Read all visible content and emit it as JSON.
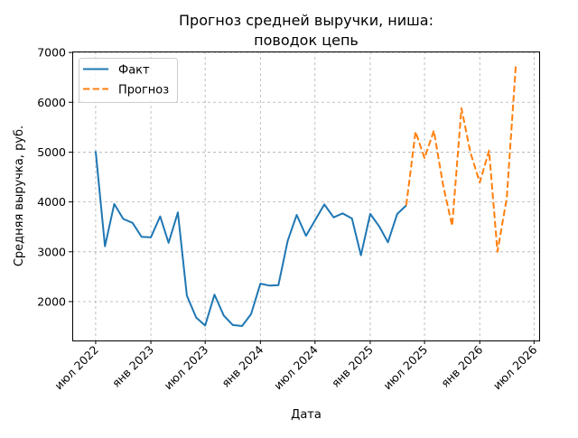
{
  "chart_data": {
    "type": "line",
    "title": [
      "Прогноз средней выручки, ниша:",
      "поводок цепь"
    ],
    "xlabel": "Дата",
    "ylabel": "Средняя выручка, руб.",
    "grid": true,
    "legend_position": "top-left",
    "xlim": [
      "2022-04-14",
      "2026-07-18"
    ],
    "ylim": [
      1220,
      7020
    ],
    "y_ticks": [
      2000,
      3000,
      4000,
      5000,
      6000,
      7000
    ],
    "x_ticks": [
      {
        "date": "2022-07-01",
        "label": "июл 2022"
      },
      {
        "date": "2023-01-01",
        "label": "янв 2023"
      },
      {
        "date": "2023-07-01",
        "label": "июл 2023"
      },
      {
        "date": "2024-01-01",
        "label": "янв 2024"
      },
      {
        "date": "2024-07-01",
        "label": "июл 2024"
      },
      {
        "date": "2025-01-01",
        "label": "янв 2025"
      },
      {
        "date": "2025-07-01",
        "label": "июл 2025"
      },
      {
        "date": "2026-01-01",
        "label": "янв 2026"
      },
      {
        "date": "2026-07-01",
        "label": "июл 2026"
      }
    ],
    "series": [
      {
        "name": "Факт",
        "color": "#1f77b4",
        "style": "solid",
        "points": [
          [
            "2022-07-01",
            5020
          ],
          [
            "2022-08-01",
            3110
          ],
          [
            "2022-09-01",
            3960
          ],
          [
            "2022-10-01",
            3660
          ],
          [
            "2022-11-01",
            3580
          ],
          [
            "2022-12-01",
            3300
          ],
          [
            "2023-01-01",
            3290
          ],
          [
            "2023-02-01",
            3710
          ],
          [
            "2023-03-01",
            3180
          ],
          [
            "2023-04-01",
            3790
          ],
          [
            "2023-05-01",
            2120
          ],
          [
            "2023-06-01",
            1680
          ],
          [
            "2023-07-01",
            1520
          ],
          [
            "2023-08-01",
            2140
          ],
          [
            "2023-09-01",
            1720
          ],
          [
            "2023-10-01",
            1530
          ],
          [
            "2023-11-01",
            1510
          ],
          [
            "2023-12-01",
            1750
          ],
          [
            "2024-01-01",
            2360
          ],
          [
            "2024-02-01",
            2320
          ],
          [
            "2024-03-01",
            2330
          ],
          [
            "2024-04-01",
            3220
          ],
          [
            "2024-05-01",
            3740
          ],
          [
            "2024-06-01",
            3320
          ],
          [
            "2024-07-01",
            3630
          ],
          [
            "2024-08-01",
            3950
          ],
          [
            "2024-09-01",
            3690
          ],
          [
            "2024-10-01",
            3770
          ],
          [
            "2024-11-01",
            3670
          ],
          [
            "2024-12-01",
            2930
          ],
          [
            "2025-01-01",
            3760
          ],
          [
            "2025-02-01",
            3500
          ],
          [
            "2025-03-01",
            3190
          ],
          [
            "2025-04-01",
            3760
          ],
          [
            "2025-05-01",
            3930
          ]
        ]
      },
      {
        "name": "Прогноз",
        "color": "#ff7f0e",
        "style": "dashed",
        "points": [
          [
            "2025-05-01",
            3930
          ],
          [
            "2025-06-01",
            5410
          ],
          [
            "2025-07-01",
            4880
          ],
          [
            "2025-08-01",
            5430
          ],
          [
            "2025-09-01",
            4330
          ],
          [
            "2025-10-01",
            3520
          ],
          [
            "2025-11-01",
            5880
          ],
          [
            "2025-12-01",
            4990
          ],
          [
            "2026-01-01",
            4390
          ],
          [
            "2026-02-01",
            5030
          ],
          [
            "2026-03-01",
            3000
          ],
          [
            "2026-04-01",
            4080
          ],
          [
            "2026-05-01",
            6720
          ]
        ]
      }
    ]
  }
}
